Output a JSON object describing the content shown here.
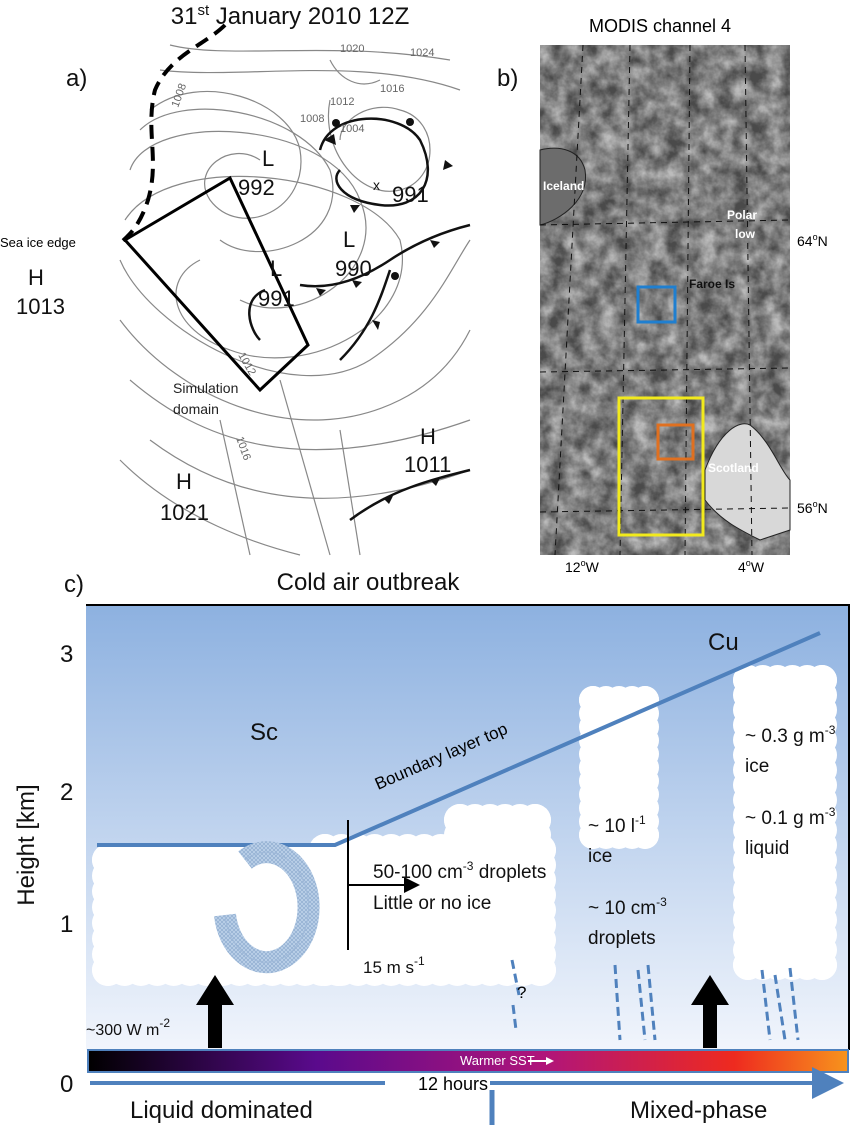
{
  "panel_a": {
    "label": "a)",
    "title": [
      "31",
      "st",
      " January 2010 12Z"
    ],
    "sea_ice_edge": "Sea ice edge",
    "simulation_domain": [
      "Simulation",
      "domain"
    ],
    "systems": [
      {
        "letter": "L",
        "pressure": 992
      },
      {
        "pressure": 991
      },
      {
        "letter": "L",
        "pressure": 990
      },
      {
        "letter": "L",
        "pressure": 991
      },
      {
        "letter": "H",
        "pressure": 1013
      },
      {
        "letter": "H",
        "pressure": 1011
      },
      {
        "letter": "H",
        "pressure": 1021
      }
    ],
    "isobar_labels": [
      1020,
      1024,
      1016,
      1012,
      1008,
      1004,
      1008,
      1012,
      1016
    ]
  },
  "panel_b": {
    "label": "b)",
    "title": "MODIS channel 4",
    "places": {
      "iceland": "Iceland",
      "polar_low": [
        "Polar",
        "low"
      ],
      "faroe": "Faroe Is",
      "scotland": "Scotland"
    },
    "lat_labels": [
      [
        "64",
        "o",
        "N"
      ],
      [
        "56",
        "o",
        "N"
      ]
    ],
    "lon_labels": [
      [
        "12",
        "o",
        "W"
      ],
      [
        "4",
        "o",
        "W"
      ]
    ]
  },
  "panel_c": {
    "label": "c)",
    "title": "Cold air outbreak",
    "y_label": "Height [km]",
    "y_ticks": [
      "3",
      "2",
      "1",
      "0"
    ],
    "cu": "Cu",
    "sc": "Sc",
    "boundary_layer": "Boundary layer  top",
    "sc_text": [
      [
        "50-100 cm",
        "-3",
        " droplets"
      ],
      [
        "Little or no ice"
      ]
    ],
    "wind": [
      "15 m s",
      "-1"
    ],
    "cu1_text": [
      [
        "~ 10 l",
        "-1"
      ],
      [
        "ice"
      ],
      [
        "~ 10 cm",
        "-3"
      ],
      [
        "droplets"
      ]
    ],
    "cu2_text": [
      [
        "~ 0.3 g m",
        "-3"
      ],
      [
        "ice"
      ],
      [
        "~ 0.1 g m",
        "-3"
      ],
      [
        "liquid"
      ]
    ],
    "question": "?",
    "heat_flux": [
      "~300 W m",
      "-2"
    ],
    "sst": "Warmer SST",
    "time": "12 hours",
    "regimes": [
      "Liquid dominated",
      "Mixed-phase"
    ]
  }
}
